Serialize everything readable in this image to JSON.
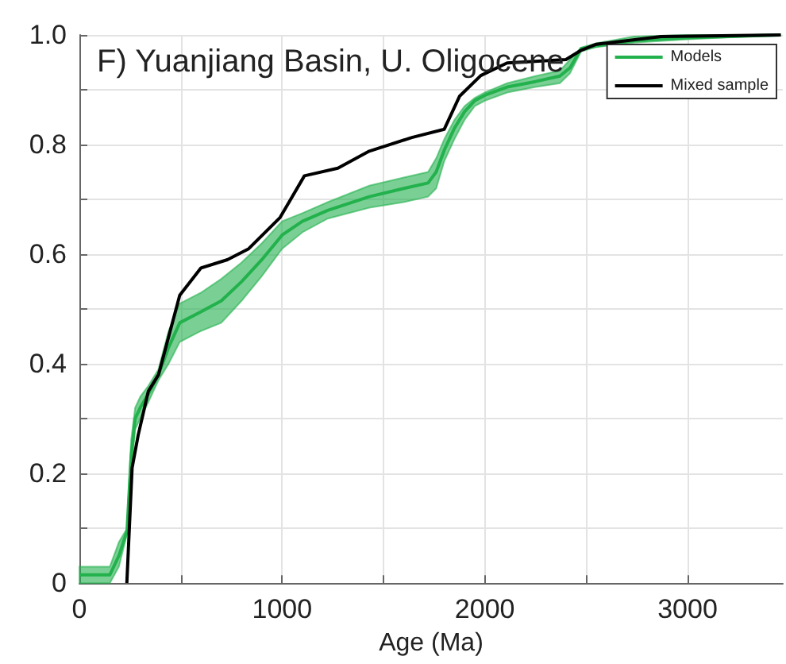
{
  "chart_data": {
    "type": "line",
    "title": "F) Yuanjiang Basin, U. Oligocene",
    "xlabel": "Age (Ma)",
    "xlim": [
      0,
      3470
    ],
    "ylim": [
      0,
      1
    ],
    "xticks": [
      0,
      {
        "value": 500,
        "label": null
      },
      1000,
      {
        "value": 1500,
        "label": null
      },
      2000,
      {
        "value": 2500,
        "label": null
      },
      3000
    ],
    "yticks": [
      0,
      {
        "value": 0.1,
        "label": null
      },
      0.2,
      {
        "value": 0.3,
        "label": null
      },
      0.4,
      {
        "value": 0.5,
        "label": null
      },
      0.6,
      {
        "value": 0.7,
        "label": null
      },
      0.8,
      {
        "value": 0.9,
        "label": null
      },
      {
        "value": 1,
        "label": "1.0"
      }
    ],
    "grid": true,
    "legend": "top right",
    "series": [
      {
        "name": "Models",
        "color": "#22b14c",
        "x": [
          0,
          150,
          195,
          235,
          255,
          275,
          300,
          340,
          390,
          440,
          495,
          600,
          700,
          800,
          900,
          1000,
          1100,
          1225,
          1430,
          1600,
          1720,
          1760,
          1800,
          1850,
          1900,
          1950,
          2000,
          2110,
          2250,
          2370,
          2420,
          2475,
          2550,
          2735,
          3000,
          3460
        ],
        "values": [
          0.015,
          0.015,
          0.05,
          0.095,
          0.23,
          0.3,
          0.32,
          0.345,
          0.38,
          0.43,
          0.475,
          0.495,
          0.515,
          0.55,
          0.59,
          0.635,
          0.66,
          0.68,
          0.705,
          0.72,
          0.73,
          0.75,
          0.79,
          0.83,
          0.86,
          0.88,
          0.89,
          0.905,
          0.915,
          0.925,
          0.94,
          0.975,
          0.98,
          0.99,
          0.995,
          1.0
        ],
        "lower": [
          0,
          0,
          0.03,
          0.09,
          0.2,
          0.28,
          0.3,
          0.33,
          0.37,
          0.4,
          0.44,
          0.46,
          0.475,
          0.515,
          0.56,
          0.61,
          0.64,
          0.665,
          0.685,
          0.695,
          0.705,
          0.72,
          0.77,
          0.81,
          0.845,
          0.87,
          0.88,
          0.895,
          0.905,
          0.912,
          0.93,
          0.97,
          0.978,
          0.986,
          0.992,
          1.0
        ],
        "upper": [
          0.03,
          0.03,
          0.075,
          0.1,
          0.26,
          0.32,
          0.34,
          0.36,
          0.39,
          0.46,
          0.51,
          0.53,
          0.555,
          0.585,
          0.62,
          0.66,
          0.675,
          0.695,
          0.725,
          0.74,
          0.75,
          0.775,
          0.81,
          0.845,
          0.87,
          0.885,
          0.895,
          0.912,
          0.925,
          0.935,
          0.955,
          0.977,
          0.985,
          0.997,
          1.0,
          1.0
        ]
      },
      {
        "name": "Mixed sample",
        "color": "#000000",
        "x": [
          234,
          260,
          290,
          340,
          390,
          495,
          600,
          730,
          835,
          990,
          1110,
          1275,
          1430,
          1640,
          1800,
          1875,
          1980,
          2110,
          2400,
          2475,
          2550,
          2870,
          3460
        ],
        "values": [
          0,
          0.21,
          0.27,
          0.35,
          0.38,
          0.525,
          0.575,
          0.59,
          0.61,
          0.667,
          0.743,
          0.757,
          0.788,
          0.813,
          0.828,
          0.888,
          0.926,
          0.949,
          0.955,
          0.972,
          0.983,
          0.997,
          1.0
        ]
      }
    ]
  }
}
